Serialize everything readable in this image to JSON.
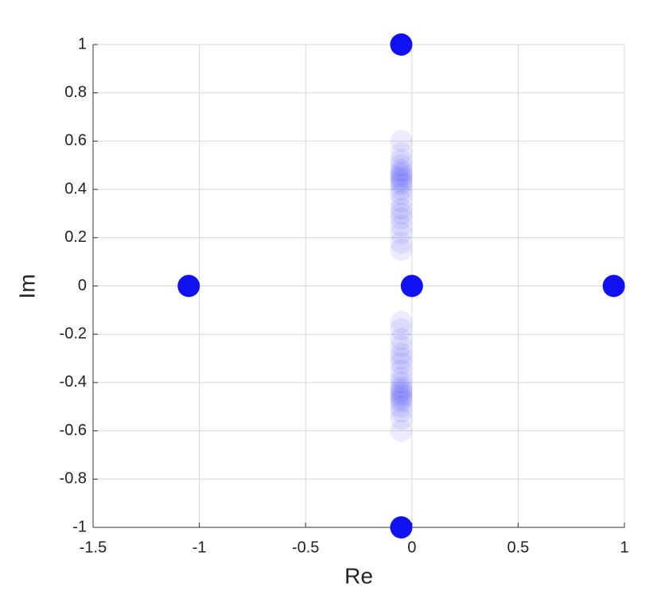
{
  "chart_data": {
    "type": "scatter",
    "x_label": "Re",
    "y_label": "Im",
    "xlim": [
      -1.5,
      1
    ],
    "ylim": [
      -1,
      1
    ],
    "xticks": [
      -1.5,
      -1,
      -0.5,
      0,
      0.5,
      1
    ],
    "yticks": [
      -1,
      -0.8,
      -0.6,
      -0.4,
      -0.2,
      0,
      0.2,
      0.4,
      0.6,
      0.8,
      1
    ],
    "grid": true,
    "series": [
      {
        "color": "#1010f0",
        "alpha": 0.08,
        "x": [
          -0.05,
          -0.05,
          -0.05,
          -0.05,
          -0.05,
          -0.05,
          -0.05,
          -0.05,
          -0.05,
          -0.05,
          -0.05,
          -0.05,
          -0.05,
          -0.05,
          -0.05,
          -0.05,
          -0.05,
          -0.05,
          -0.05,
          -0.05,
          -0.05,
          -0.05,
          -0.05,
          -0.05,
          -0.05,
          -0.05,
          -0.05,
          -0.05,
          -0.05,
          -0.05,
          -0.05,
          -0.05,
          -0.05,
          -0.05,
          -0.05,
          -0.05,
          -0.05,
          -0.05,
          -0.05,
          -0.05,
          -0.05,
          -0.05
        ],
        "y": [
          0.15,
          0.18,
          0.22,
          0.25,
          0.28,
          0.3,
          0.32,
          0.35,
          0.38,
          0.4,
          0.42,
          0.43,
          0.44,
          0.45,
          0.46,
          0.47,
          0.48,
          0.5,
          0.52,
          0.55,
          0.6,
          -0.15,
          -0.18,
          -0.22,
          -0.25,
          -0.28,
          -0.3,
          -0.32,
          -0.35,
          -0.38,
          -0.4,
          -0.42,
          -0.43,
          -0.44,
          -0.45,
          -0.46,
          -0.47,
          -0.48,
          -0.5,
          -0.52,
          -0.55,
          -0.6
        ]
      },
      {
        "color": "#1010f0",
        "alpha": 1,
        "x": [
          -0.05,
          -1.05,
          0,
          0.95,
          -0.05
        ],
        "y": [
          1,
          0,
          0,
          0,
          -1
        ]
      }
    ]
  }
}
